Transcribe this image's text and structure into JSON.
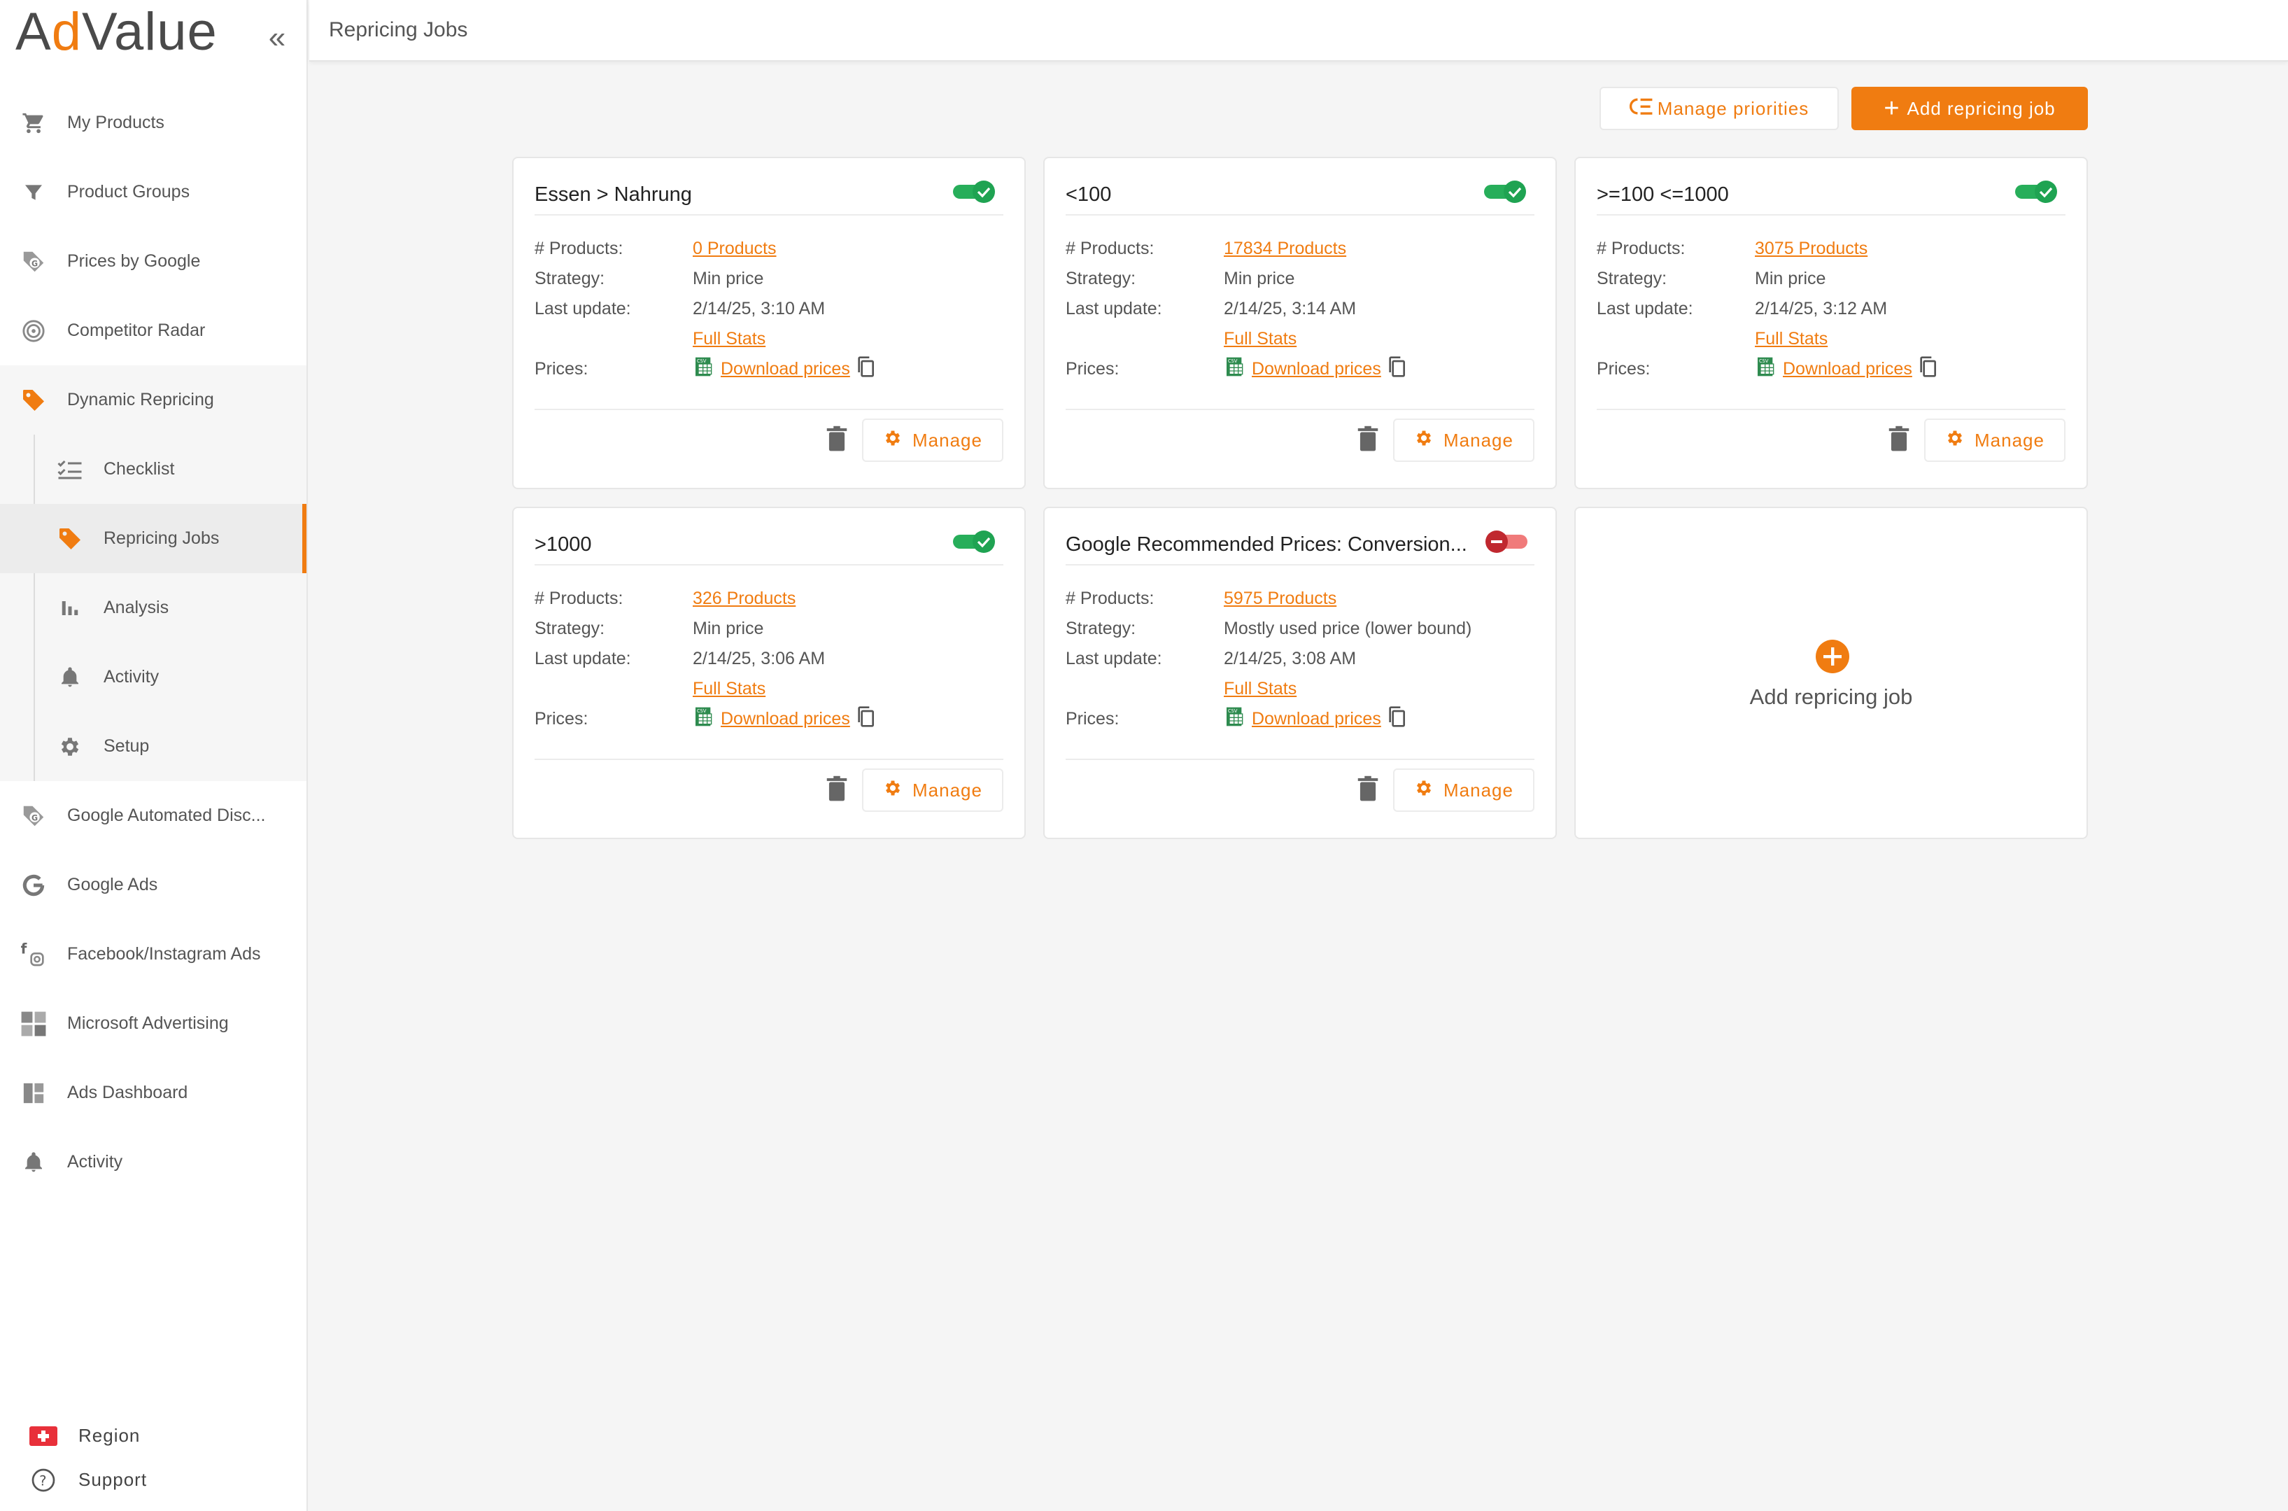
{
  "app": {
    "logo_prefix": "A",
    "logo_accent": "d",
    "logo_suffix": "Value",
    "accent_color": "#f07c11"
  },
  "sidebar": {
    "items": [
      {
        "label": "My Products",
        "icon": "cart-icon"
      },
      {
        "label": "Product Groups",
        "icon": "filter-icon"
      },
      {
        "label": "Prices by Google",
        "icon": "google-tag-icon"
      },
      {
        "label": "Competitor Radar",
        "icon": "radar-icon"
      },
      {
        "label": "Dynamic Repricing",
        "icon": "price-tag-icon"
      }
    ],
    "sub_items": [
      {
        "label": "Checklist",
        "icon": "checklist-icon"
      },
      {
        "label": "Repricing Jobs",
        "icon": "price-tag-icon"
      },
      {
        "label": "Analysis",
        "icon": "bar-chart-icon"
      },
      {
        "label": "Activity",
        "icon": "bell-icon"
      },
      {
        "label": "Setup",
        "icon": "gear-icon"
      }
    ],
    "more_items": [
      {
        "label": "Google Automated Disc...",
        "icon": "google-tag-icon"
      },
      {
        "label": "Google Ads",
        "icon": "google-icon"
      },
      {
        "label": "Facebook/Instagram Ads",
        "icon": "facebook-instagram-icon"
      },
      {
        "label": "Microsoft Advertising",
        "icon": "microsoft-icon"
      },
      {
        "label": "Ads Dashboard",
        "icon": "dashboard-icon"
      },
      {
        "label": "Activity",
        "icon": "bell-icon"
      }
    ],
    "bottom": {
      "region": "Region",
      "support": "Support"
    }
  },
  "header": {
    "title": "Repricing Jobs"
  },
  "toolbar": {
    "manage_priorities": "Manage priorities",
    "add_job": "Add repricing job"
  },
  "labels": {
    "products": "# Products:",
    "strategy": "Strategy:",
    "last_update": "Last update:",
    "prices": "Prices:",
    "full_stats": "Full Stats",
    "download_prices": "Download prices",
    "manage": "Manage"
  },
  "jobs": [
    {
      "title": "Essen > Nahrung",
      "enabled": true,
      "products": "0 Products",
      "strategy": "Min price",
      "last_update": "2/14/25, 3:10 AM"
    },
    {
      "title": "<100",
      "enabled": true,
      "products": "17834 Products",
      "strategy": "Min price",
      "last_update": "2/14/25, 3:14 AM"
    },
    {
      "title": ">=100 <=1000",
      "enabled": true,
      "products": "3075 Products",
      "strategy": "Min price",
      "last_update": "2/14/25, 3:12 AM"
    },
    {
      "title": ">1000",
      "enabled": true,
      "products": "326 Products",
      "strategy": "Min price",
      "last_update": "2/14/25, 3:06 AM"
    },
    {
      "title": "Google Recommended Prices: Conversion...",
      "enabled": false,
      "products": "5975 Products",
      "strategy": "Mostly used price (lower bound)",
      "last_update": "2/14/25, 3:08 AM"
    }
  ],
  "add_card": {
    "label": "Add repricing job"
  }
}
